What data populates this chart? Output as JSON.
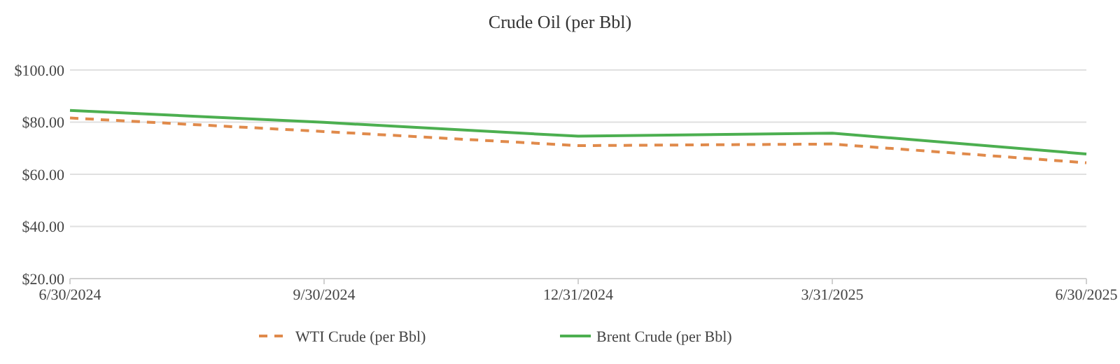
{
  "chart_data": {
    "type": "line",
    "title": "Crude Oil (per Bbl)",
    "categories": [
      "6/30/2024",
      "9/30/2024",
      "12/31/2024",
      "3/31/2025",
      "6/30/2025"
    ],
    "series": [
      {
        "name": "WTI Crude (per Bbl)",
        "color": "#e08a4b",
        "line_style": "dashed",
        "values": [
          81.6,
          76.4,
          71.0,
          71.6,
          64.4
        ]
      },
      {
        "name": "Brent Crude (per Bbl)",
        "color": "#4caf50",
        "line_style": "solid",
        "values": [
          84.5,
          79.9,
          74.6,
          75.8,
          67.8
        ]
      }
    ],
    "ylim": [
      20,
      100
    ],
    "yticks": [
      {
        "value": 20,
        "label": "$20.00"
      },
      {
        "value": 40,
        "label": "$40.00"
      },
      {
        "value": 60,
        "label": "$60.00"
      },
      {
        "value": 80,
        "label": "$80.00"
      },
      {
        "value": 100,
        "label": "$100.00"
      }
    ],
    "grid": "y",
    "legend": "bottom",
    "marker": "none"
  }
}
